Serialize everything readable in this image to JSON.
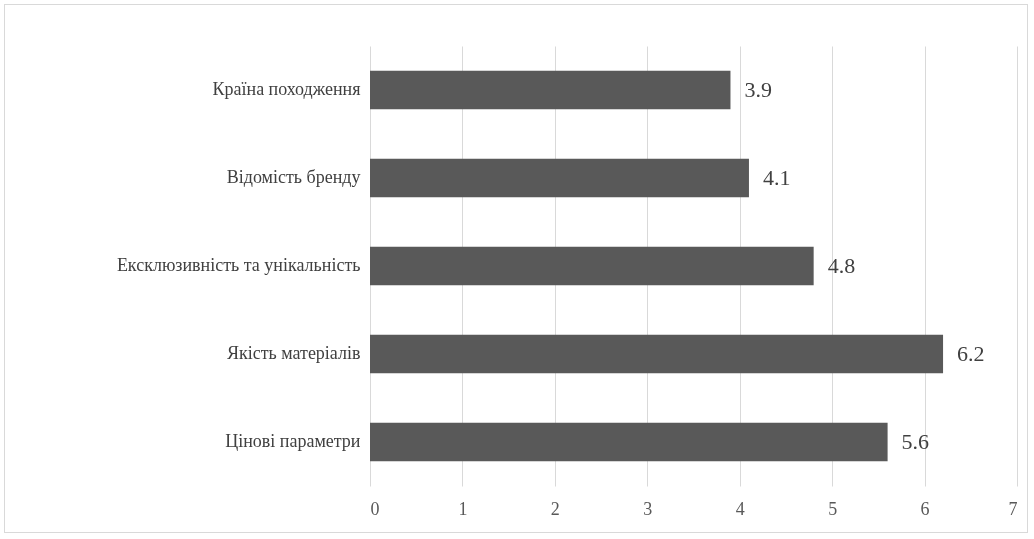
{
  "chart_data": {
    "type": "bar",
    "orientation": "horizontal",
    "categories": [
      "Країна походження",
      "Відомість бренду",
      "Ексклюзивність та унікальність",
      "Якість матеріалів",
      "Цінові параметри"
    ],
    "values": [
      3.9,
      4.1,
      4.8,
      6.2,
      5.6
    ],
    "color": "#595959",
    "xlim": [
      0,
      7
    ],
    "xticks": [
      0,
      1,
      2,
      3,
      4,
      5,
      6,
      7
    ],
    "grid": "x",
    "data_labels": true
  }
}
